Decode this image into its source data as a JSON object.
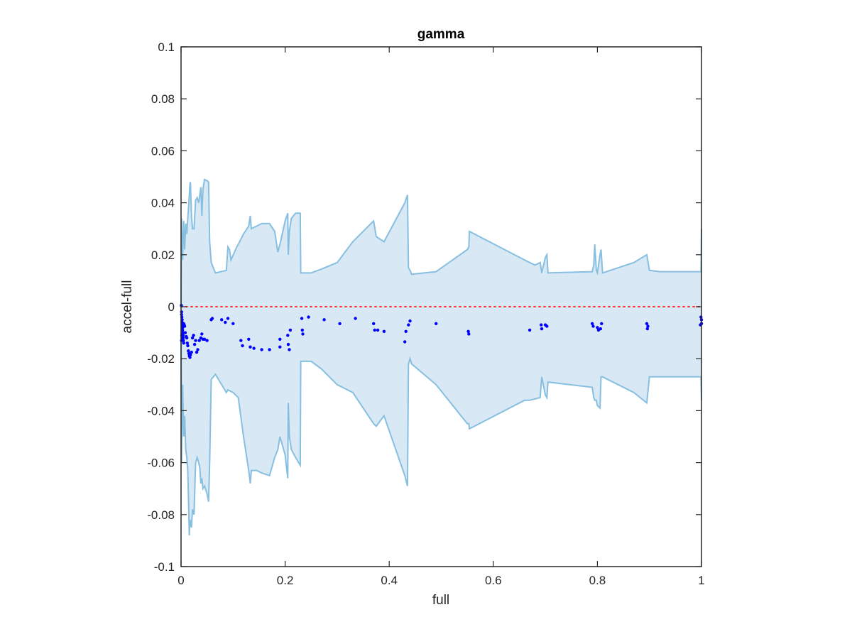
{
  "chart_data": {
    "type": "scatter",
    "title": "gamma",
    "xlabel": "full",
    "ylabel": "accel-full",
    "xlim": [
      0,
      1
    ],
    "ylim": [
      -0.1,
      0.1
    ],
    "grid": false,
    "legend": "none",
    "x_ticks": [
      0,
      0.2,
      0.4,
      0.6,
      0.8,
      1
    ],
    "x_tick_labels": [
      "0",
      "0.2",
      "0.4",
      "0.6",
      "0.8",
      "1"
    ],
    "y_ticks": [
      -0.1,
      -0.08,
      -0.06,
      -0.04,
      -0.02,
      0,
      0.02,
      0.04,
      0.06,
      0.08,
      0.1
    ],
    "y_tick_labels": [
      "-0.1",
      "-0.08",
      "-0.06",
      "-0.04",
      "-0.02",
      "0",
      "0.02",
      "0.04",
      "0.06",
      "0.08",
      "0.1"
    ],
    "colors": {
      "band_fill": "#d8e8f5",
      "band_edge": "#87bfe0",
      "points": "#0000ff",
      "zero_line": "#ff3333",
      "axes": "#262626"
    },
    "reference_line": {
      "y": 0,
      "style": "dotted"
    },
    "band_upper": [
      [
        0,
        0.0
      ],
      [
        0.001,
        0.034
      ],
      [
        0.003,
        0.018
      ],
      [
        0.005,
        0.033
      ],
      [
        0.007,
        0.022
      ],
      [
        0.009,
        0.032
      ],
      [
        0.011,
        0.028
      ],
      [
        0.013,
        0.034
      ],
      [
        0.015,
        0.04
      ],
      [
        0.017,
        0.047
      ],
      [
        0.018,
        0.048
      ],
      [
        0.02,
        0.035
      ],
      [
        0.022,
        0.03
      ],
      [
        0.025,
        0.03
      ],
      [
        0.028,
        0.041
      ],
      [
        0.031,
        0.042
      ],
      [
        0.034,
        0.04
      ],
      [
        0.036,
        0.043
      ],
      [
        0.038,
        0.046
      ],
      [
        0.04,
        0.035
      ],
      [
        0.042,
        0.045
      ],
      [
        0.045,
        0.049
      ],
      [
        0.05,
        0.0485
      ],
      [
        0.053,
        0.048
      ],
      [
        0.055,
        0.025
      ],
      [
        0.058,
        0.017
      ],
      [
        0.066,
        0.013
      ],
      [
        0.087,
        0.014
      ],
      [
        0.09,
        0.023
      ],
      [
        0.093,
        0.022
      ],
      [
        0.096,
        0.018
      ],
      [
        0.107,
        0.023
      ],
      [
        0.11,
        0.024
      ],
      [
        0.12,
        0.028
      ],
      [
        0.13,
        0.031
      ],
      [
        0.133,
        0.035
      ],
      [
        0.135,
        0.03
      ],
      [
        0.145,
        0.031
      ],
      [
        0.155,
        0.032
      ],
      [
        0.17,
        0.032
      ],
      [
        0.18,
        0.029
      ],
      [
        0.186,
        0.021
      ],
      [
        0.19,
        0.024
      ],
      [
        0.2,
        0.033
      ],
      [
        0.205,
        0.036
      ],
      [
        0.206,
        0.02
      ],
      [
        0.208,
        0.029
      ],
      [
        0.212,
        0.034
      ],
      [
        0.22,
        0.036
      ],
      [
        0.229,
        0.036
      ],
      [
        0.23,
        0.013
      ],
      [
        0.25,
        0.013
      ],
      [
        0.27,
        0.0145
      ],
      [
        0.3,
        0.017
      ],
      [
        0.33,
        0.025
      ],
      [
        0.37,
        0.033
      ],
      [
        0.375,
        0.027
      ],
      [
        0.39,
        0.025
      ],
      [
        0.43,
        0.04
      ],
      [
        0.435,
        0.043
      ],
      [
        0.437,
        0.015
      ],
      [
        0.44,
        0.014
      ],
      [
        0.443,
        0.0125
      ],
      [
        0.49,
        0.0135
      ],
      [
        0.55,
        0.022
      ],
      [
        0.553,
        0.023
      ],
      [
        0.554,
        0.029
      ],
      [
        0.66,
        0.018
      ],
      [
        0.67,
        0.017
      ],
      [
        0.68,
        0.016
      ],
      [
        0.69,
        0.017
      ],
      [
        0.693,
        0.013
      ],
      [
        0.7,
        0.019
      ],
      [
        0.703,
        0.02
      ],
      [
        0.705,
        0.013
      ],
      [
        0.79,
        0.0135
      ],
      [
        0.793,
        0.016
      ],
      [
        0.795,
        0.024
      ],
      [
        0.798,
        0.014
      ],
      [
        0.8,
        0.013
      ],
      [
        0.805,
        0.02
      ],
      [
        0.807,
        0.022
      ],
      [
        0.81,
        0.013
      ],
      [
        0.87,
        0.017
      ],
      [
        0.895,
        0.02
      ],
      [
        0.9,
        0.014
      ],
      [
        0.92,
        0.0135
      ],
      [
        0.95,
        0.0135
      ],
      [
        0.999,
        0.0135
      ],
      [
        1,
        0.03
      ]
    ],
    "band_lower": [
      [
        0,
        -0.005
      ],
      [
        0.001,
        -0.06
      ],
      [
        0.003,
        -0.03
      ],
      [
        0.005,
        -0.05
      ],
      [
        0.007,
        -0.042
      ],
      [
        0.009,
        -0.055
      ],
      [
        0.011,
        -0.058
      ],
      [
        0.013,
        -0.063
      ],
      [
        0.015,
        -0.08
      ],
      [
        0.016,
        -0.088
      ],
      [
        0.017,
        -0.082
      ],
      [
        0.02,
        -0.085
      ],
      [
        0.022,
        -0.078
      ],
      [
        0.025,
        -0.08
      ],
      [
        0.028,
        -0.06
      ],
      [
        0.031,
        -0.058
      ],
      [
        0.034,
        -0.06
      ],
      [
        0.036,
        -0.062
      ],
      [
        0.038,
        -0.068
      ],
      [
        0.04,
        -0.066
      ],
      [
        0.042,
        -0.07
      ],
      [
        0.045,
        -0.069
      ],
      [
        0.05,
        -0.072
      ],
      [
        0.053,
        -0.075
      ],
      [
        0.055,
        -0.06
      ],
      [
        0.058,
        -0.028
      ],
      [
        0.066,
        -0.026
      ],
      [
        0.087,
        -0.033
      ],
      [
        0.09,
        -0.032
      ],
      [
        0.1,
        -0.033
      ],
      [
        0.11,
        -0.035
      ],
      [
        0.12,
        -0.05
      ],
      [
        0.13,
        -0.063
      ],
      [
        0.133,
        -0.068
      ],
      [
        0.135,
        -0.063
      ],
      [
        0.145,
        -0.063
      ],
      [
        0.155,
        -0.064
      ],
      [
        0.17,
        -0.065
      ],
      [
        0.18,
        -0.058
      ],
      [
        0.186,
        -0.055
      ],
      [
        0.19,
        -0.05
      ],
      [
        0.2,
        -0.057
      ],
      [
        0.205,
        -0.066
      ],
      [
        0.206,
        -0.037
      ],
      [
        0.208,
        -0.05
      ],
      [
        0.212,
        -0.055
      ],
      [
        0.22,
        -0.058
      ],
      [
        0.229,
        -0.061
      ],
      [
        0.23,
        -0.021
      ],
      [
        0.25,
        -0.021
      ],
      [
        0.27,
        -0.024
      ],
      [
        0.3,
        -0.03
      ],
      [
        0.33,
        -0.033
      ],
      [
        0.37,
        -0.045
      ],
      [
        0.375,
        -0.046
      ],
      [
        0.39,
        -0.042
      ],
      [
        0.43,
        -0.065
      ],
      [
        0.435,
        -0.069
      ],
      [
        0.437,
        -0.022
      ],
      [
        0.44,
        -0.02
      ],
      [
        0.443,
        -0.022
      ],
      [
        0.49,
        -0.03
      ],
      [
        0.55,
        -0.045
      ],
      [
        0.553,
        -0.045
      ],
      [
        0.554,
        -0.047
      ],
      [
        0.66,
        -0.036
      ],
      [
        0.67,
        -0.036
      ],
      [
        0.68,
        -0.0355
      ],
      [
        0.69,
        -0.035
      ],
      [
        0.693,
        -0.027
      ],
      [
        0.7,
        -0.034
      ],
      [
        0.703,
        -0.035
      ],
      [
        0.705,
        -0.029
      ],
      [
        0.79,
        -0.031
      ],
      [
        0.793,
        -0.035
      ],
      [
        0.795,
        -0.036
      ],
      [
        0.798,
        -0.036
      ],
      [
        0.8,
        -0.038
      ],
      [
        0.805,
        -0.039
      ],
      [
        0.807,
        -0.027
      ],
      [
        0.81,
        -0.027
      ],
      [
        0.87,
        -0.033
      ],
      [
        0.895,
        -0.037
      ],
      [
        0.9,
        -0.027
      ],
      [
        0.92,
        -0.027
      ],
      [
        0.95,
        -0.027
      ],
      [
        0.999,
        -0.027
      ],
      [
        1,
        -0.036
      ]
    ],
    "points": [
      [
        0.0005,
        0.0005
      ],
      [
        0.001,
        -0.002
      ],
      [
        0.001,
        -0.003
      ],
      [
        0.0015,
        -0.004
      ],
      [
        0.002,
        -0.005
      ],
      [
        0.002,
        -0.006
      ],
      [
        0.0025,
        -0.007
      ],
      [
        0.003,
        -0.008
      ],
      [
        0.003,
        -0.009
      ],
      [
        0.0035,
        -0.01
      ],
      [
        0.004,
        -0.011
      ],
      [
        0.004,
        -0.012
      ],
      [
        0.0045,
        -0.013
      ],
      [
        0.005,
        -0.014
      ],
      [
        0.001,
        -0.013
      ],
      [
        0.0015,
        -0.011
      ],
      [
        0.002,
        -0.0105
      ],
      [
        0.003,
        -0.012
      ],
      [
        0.005,
        -0.0065
      ],
      [
        0.006,
        -0.007
      ],
      [
        0.007,
        -0.0075
      ],
      [
        0.008,
        -0.01
      ],
      [
        0.01,
        -0.0115
      ],
      [
        0.011,
        -0.012
      ],
      [
        0.012,
        -0.014
      ],
      [
        0.013,
        -0.015
      ],
      [
        0.014,
        -0.017
      ],
      [
        0.015,
        -0.018
      ],
      [
        0.016,
        -0.019
      ],
      [
        0.017,
        -0.0195
      ],
      [
        0.018,
        -0.0185
      ],
      [
        0.02,
        -0.0175
      ],
      [
        0.022,
        -0.012
      ],
      [
        0.024,
        -0.011
      ],
      [
        0.026,
        -0.0145
      ],
      [
        0.028,
        -0.013
      ],
      [
        0.03,
        -0.0175
      ],
      [
        0.032,
        -0.0165
      ],
      [
        0.035,
        -0.013
      ],
      [
        0.038,
        -0.012
      ],
      [
        0.04,
        -0.0105
      ],
      [
        0.042,
        -0.0125
      ],
      [
        0.045,
        -0.0125
      ],
      [
        0.05,
        -0.013
      ],
      [
        0.058,
        -0.005
      ],
      [
        0.06,
        -0.0045
      ],
      [
        0.078,
        -0.005
      ],
      [
        0.085,
        -0.006
      ],
      [
        0.09,
        -0.0045
      ],
      [
        0.1,
        -0.0065
      ],
      [
        0.115,
        -0.013
      ],
      [
        0.118,
        -0.015
      ],
      [
        0.13,
        -0.0125
      ],
      [
        0.133,
        -0.0155
      ],
      [
        0.14,
        -0.016
      ],
      [
        0.155,
        -0.0165
      ],
      [
        0.17,
        -0.0165
      ],
      [
        0.19,
        -0.0125
      ],
      [
        0.19,
        -0.0155
      ],
      [
        0.205,
        -0.011
      ],
      [
        0.206,
        -0.0145
      ],
      [
        0.208,
        -0.0165
      ],
      [
        0.21,
        -0.009
      ],
      [
        0.232,
        -0.0045
      ],
      [
        0.233,
        -0.009
      ],
      [
        0.234,
        -0.0105
      ],
      [
        0.245,
        -0.004
      ],
      [
        0.275,
        -0.005
      ],
      [
        0.305,
        -0.0065
      ],
      [
        0.335,
        -0.0045
      ],
      [
        0.37,
        -0.0065
      ],
      [
        0.372,
        -0.009
      ],
      [
        0.378,
        -0.009
      ],
      [
        0.39,
        -0.0095
      ],
      [
        0.43,
        -0.0135
      ],
      [
        0.432,
        -0.0095
      ],
      [
        0.437,
        -0.007
      ],
      [
        0.44,
        -0.0055
      ],
      [
        0.49,
        -0.0065
      ],
      [
        0.552,
        -0.0095
      ],
      [
        0.553,
        -0.0105
      ],
      [
        0.67,
        -0.009
      ],
      [
        0.692,
        -0.007
      ],
      [
        0.693,
        -0.0085
      ],
      [
        0.7,
        -0.007
      ],
      [
        0.703,
        -0.0075
      ],
      [
        0.79,
        -0.0065
      ],
      [
        0.792,
        -0.0075
      ],
      [
        0.8,
        -0.008
      ],
      [
        0.802,
        -0.009
      ],
      [
        0.806,
        -0.0085
      ],
      [
        0.808,
        -0.0065
      ],
      [
        0.895,
        -0.0065
      ],
      [
        0.896,
        -0.0085
      ],
      [
        0.897,
        -0.0075
      ],
      [
        0.999,
        -0.004
      ],
      [
        1,
        -0.005
      ],
      [
        1,
        -0.0065
      ],
      [
        0.998,
        -0.007
      ]
    ]
  }
}
